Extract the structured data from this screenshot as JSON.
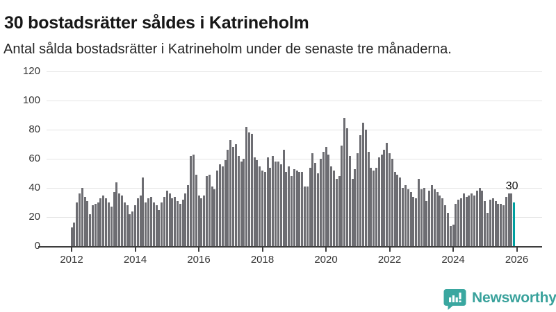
{
  "header": {
    "title": "30 bostadsrätter såldes i Katrineholm",
    "subtitle": "Antal sålda bostadsrätter i Katrineholm under de senaste tre månaderna."
  },
  "chart_data": {
    "type": "bar",
    "title": "30 bostadsrätter såldes i Katrineholm",
    "subtitle": "Antal sålda bostadsrätter i Katrineholm under de senaste tre månaderna.",
    "frequency": "monthly",
    "x_start": "2012-01",
    "x_end": "2025-12",
    "values": [
      13,
      16,
      30,
      36,
      40,
      34,
      31,
      22,
      28,
      29,
      30,
      33,
      35,
      33,
      30,
      27,
      37,
      44,
      36,
      35,
      30,
      28,
      22,
      24,
      28,
      33,
      35,
      47,
      30,
      33,
      34,
      30,
      28,
      25,
      30,
      34,
      38,
      36,
      33,
      34,
      31,
      29,
      32,
      36,
      42,
      62,
      63,
      49,
      35,
      33,
      35,
      48,
      49,
      41,
      39,
      52,
      56,
      55,
      59,
      66,
      73,
      68,
      70,
      62,
      58,
      60,
      82,
      78,
      77,
      61,
      59,
      55,
      52,
      51,
      61,
      54,
      62,
      58,
      58,
      56,
      66,
      51,
      55,
      48,
      53,
      52,
      51,
      51,
      41,
      41,
      54,
      64,
      57,
      50,
      60,
      65,
      68,
      63,
      55,
      52,
      46,
      48,
      69,
      88,
      81,
      62,
      46,
      53,
      64,
      76,
      85,
      80,
      65,
      54,
      52,
      54,
      61,
      63,
      66,
      71,
      64,
      60,
      51,
      49,
      47,
      40,
      42,
      39,
      37,
      34,
      33,
      46,
      39,
      40,
      31,
      38,
      42,
      39,
      37,
      35,
      33,
      28,
      23,
      14,
      15,
      29,
      32,
      33,
      36,
      34,
      35,
      36,
      35,
      38,
      40,
      38,
      31,
      23,
      32,
      33,
      31,
      29,
      29,
      28,
      34,
      36,
      36,
      30
    ],
    "ylim": [
      0,
      120
    ],
    "yticks": [
      0,
      20,
      40,
      60,
      80,
      100,
      120
    ],
    "xticks": [
      2012,
      2014,
      2016,
      2018,
      2020,
      2022,
      2024,
      2026
    ],
    "grid": true,
    "legend": false,
    "bar_color": "#6d6d72",
    "highlight": {
      "index": 167,
      "value": 30,
      "label": "30",
      "color": "#00a0a0"
    }
  },
  "annotation": {
    "text": "30"
  },
  "footer": {
    "brand": "Newsworthy"
  },
  "colors": {
    "title": "#171717",
    "subtitle": "#262626",
    "axis": "#3d3d3d",
    "grid": "#e4e4e4",
    "bar": "#6d6d72",
    "accent": "#00a0a0",
    "logo": "#3aa29c"
  }
}
